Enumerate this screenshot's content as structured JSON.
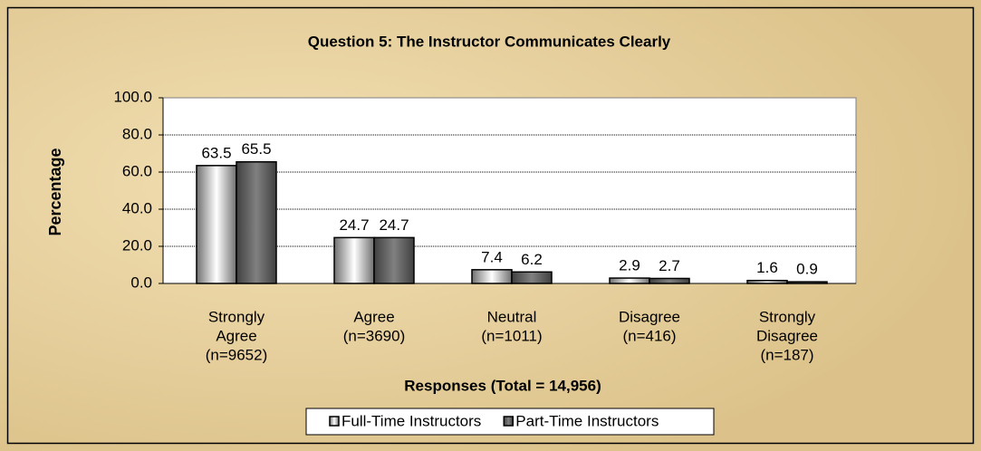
{
  "chart_data": {
    "type": "bar",
    "title": "Question 5:  The Instructor Communicates Clearly",
    "ylabel": "Percentage",
    "xlabel": "Responses (Total = 14,956)",
    "categories": [
      [
        "Strongly",
        "Agree",
        "(n=9652)"
      ],
      [
        "Agree",
        "(n=3690)"
      ],
      [
        "Neutral",
        "(n=1011)"
      ],
      [
        "Disagree",
        "(n=416)"
      ],
      [
        "Strongly",
        "Disagree",
        "(n=187)"
      ]
    ],
    "series": [
      {
        "name": "Full-Time Instructors",
        "color": "#ffffff",
        "values": [
          63.5,
          24.7,
          7.4,
          2.9,
          1.6
        ]
      },
      {
        "name": "Part-Time Instructors",
        "color": "#808080",
        "values": [
          65.5,
          24.7,
          6.2,
          2.7,
          0.9
        ]
      }
    ],
    "ylim": [
      0,
      100
    ],
    "yticks": [
      {
        "value": 0,
        "label": "0.0"
      },
      {
        "value": 20,
        "label": "20.0"
      },
      {
        "value": 40,
        "label": "40.0"
      },
      {
        "value": 60,
        "label": "60.0"
      },
      {
        "value": 80,
        "label": "80.0"
      },
      {
        "value": 100,
        "label": "100.0"
      }
    ],
    "grid": true,
    "legend": "bottom"
  }
}
